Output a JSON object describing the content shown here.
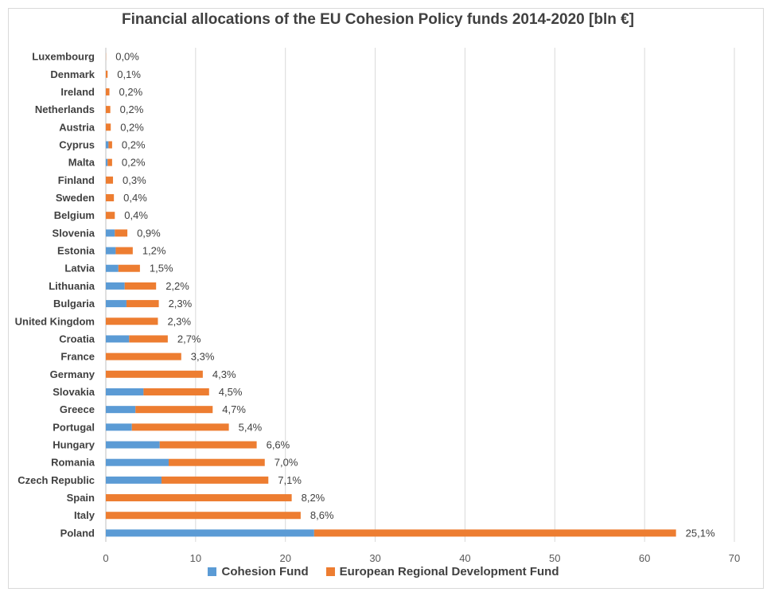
{
  "chart_data": {
    "type": "bar",
    "orientation": "horizontal",
    "stacked": true,
    "title": "Financial allocations of the EU Cohesion Policy funds 2014-2020 [bln €]",
    "xlim": [
      0,
      70
    ],
    "xticks": [
      0,
      10,
      20,
      30,
      40,
      50,
      60,
      70
    ],
    "grid": true,
    "legend_position": "bottom",
    "categories": [
      "Luxembourg",
      "Denmark",
      "Ireland",
      "Netherlands",
      "Austria",
      "Cyprus",
      "Malta",
      "Finland",
      "Sweden",
      "Belgium",
      "Slovenia",
      "Estonia",
      "Latvia",
      "Lithuania",
      "Bulgaria",
      "United Kingdom",
      "Croatia",
      "France",
      "Germany",
      "Slovakia",
      "Greece",
      "Portugal",
      "Hungary",
      "Romania",
      "Czech Republic",
      "Spain",
      "Italy",
      "Poland"
    ],
    "series": [
      {
        "name": "Cohesion Fund",
        "color": "#5b9bd5",
        "values": [
          0,
          0,
          0,
          0,
          0,
          0.3,
          0.2,
          0,
          0,
          0,
          1.0,
          1.1,
          1.4,
          2.1,
          2.3,
          0,
          2.6,
          0,
          0,
          4.2,
          3.3,
          2.9,
          6.0,
          7.0,
          6.2,
          0,
          0,
          23.2
        ]
      },
      {
        "name": "European Regional Development Fund",
        "color": "#ed7d31",
        "values": [
          0.02,
          0.2,
          0.4,
          0.5,
          0.55,
          0.4,
          0.5,
          0.8,
          0.9,
          1.0,
          1.4,
          1.9,
          2.4,
          3.5,
          3.6,
          5.8,
          4.3,
          8.4,
          10.8,
          7.3,
          8.6,
          10.8,
          10.8,
          10.7,
          11.9,
          20.7,
          21.7,
          40.3
        ]
      }
    ],
    "data_labels": [
      "0,0%",
      "0,1%",
      "0,2%",
      "0,2%",
      "0,2%",
      "0,2%",
      "0,2%",
      "0,3%",
      "0,4%",
      "0,4%",
      "0,9%",
      "1,2%",
      "1,5%",
      "2,2%",
      "2,3%",
      "2,3%",
      "2,7%",
      "3,3%",
      "4,3%",
      "4,5%",
      "4,7%",
      "5,4%",
      "6,6%",
      "7,0%",
      "7,1%",
      "8,2%",
      "8,6%",
      "25,1%"
    ]
  }
}
